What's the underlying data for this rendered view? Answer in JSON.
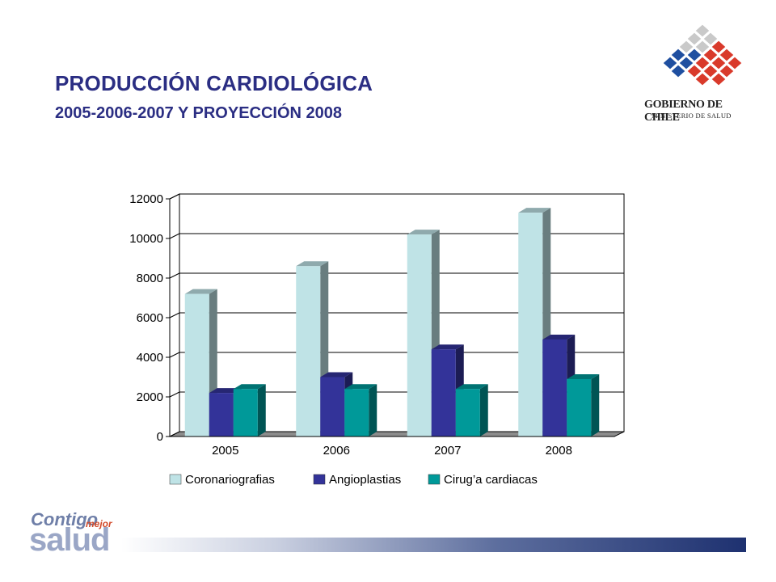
{
  "slide": {
    "title": "PRODUCCIÓN  CARDIOLÓGICA",
    "subtitle": "2005-2006-2007 Y PROYECCIÓN 2008"
  },
  "logo": {
    "line1": "GOBIERNO DE CHILE",
    "line2": "MINISTERIO DE SALUD"
  },
  "footer": {
    "contigo": "Contigo",
    "mejor": "mejor",
    "salud": "salud"
  },
  "chart_data": {
    "type": "bar",
    "title": "",
    "xlabel": "",
    "ylabel": "",
    "categories": [
      "2005",
      "2006",
      "2007",
      "2008"
    ],
    "ylim": [
      0,
      12000
    ],
    "yticks": [
      0,
      2000,
      4000,
      6000,
      8000,
      10000,
      12000
    ],
    "grid": true,
    "legend_position": "bottom",
    "series": [
      {
        "name": "Coronariografias",
        "color": "#bfe3e6",
        "values": [
          7200,
          8600,
          10200,
          11300
        ]
      },
      {
        "name": "Angioplastias",
        "color": "#333399",
        "values": [
          2200,
          3000,
          4400,
          4900
        ]
      },
      {
        "name": "Cirug’a cardiacas",
        "color": "#009999",
        "values": [
          2400,
          2400,
          2400,
          2900
        ]
      }
    ]
  }
}
